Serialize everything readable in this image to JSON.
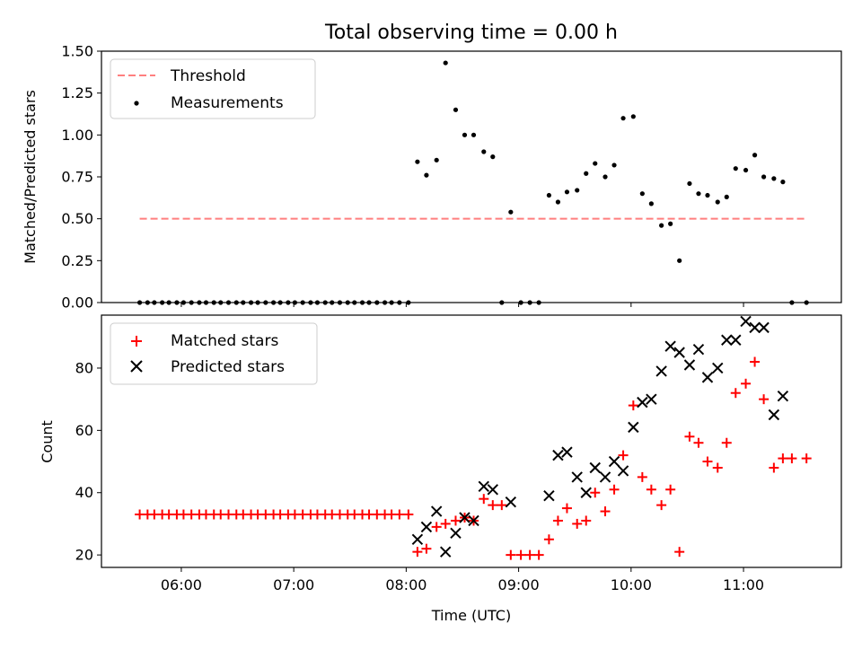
{
  "chart_data": [
    {
      "type": "scatter",
      "title": "Total observing time = 0.00 h",
      "ylabel": "Matched/Predicted stars",
      "xlabel": "",
      "xlim_hours": [
        5.29,
        11.87
      ],
      "ylim": [
        0,
        1.5
      ],
      "xticks": [
        {
          "h": 6,
          "label": "06:00"
        },
        {
          "h": 7,
          "label": "07:00"
        },
        {
          "h": 8,
          "label": "08:00"
        },
        {
          "h": 9,
          "label": "09:00"
        },
        {
          "h": 10,
          "label": "10:00"
        },
        {
          "h": 11,
          "label": "11:00"
        }
      ],
      "yticks": [
        0,
        0.25,
        0.5,
        0.75,
        1.0,
        1.25,
        1.5
      ],
      "ytick_labels": [
        "0.00",
        "0.25",
        "0.50",
        "0.75",
        "1.00",
        "1.25",
        "1.50"
      ],
      "legend_position": "top-left",
      "threshold": {
        "name": "Threshold",
        "value": 0.5,
        "x_start": 5.63,
        "x_end": 11.56,
        "color": "#ff7f7f"
      },
      "series": [
        {
          "name": "Measurements",
          "color": "#000000",
          "marker": "dot",
          "points": [
            [
              5.63,
              0
            ],
            [
              5.7,
              0
            ],
            [
              5.76,
              0
            ],
            [
              5.83,
              0
            ],
            [
              5.89,
              0
            ],
            [
              5.96,
              0
            ],
            [
              6.02,
              0
            ],
            [
              6.09,
              0
            ],
            [
              6.16,
              0
            ],
            [
              6.22,
              0
            ],
            [
              6.29,
              0
            ],
            [
              6.35,
              0
            ],
            [
              6.42,
              0
            ],
            [
              6.49,
              0
            ],
            [
              6.55,
              0
            ],
            [
              6.62,
              0
            ],
            [
              6.68,
              0
            ],
            [
              6.75,
              0
            ],
            [
              6.82,
              0
            ],
            [
              6.88,
              0
            ],
            [
              6.95,
              0
            ],
            [
              7.01,
              0
            ],
            [
              7.08,
              0
            ],
            [
              7.15,
              0
            ],
            [
              7.21,
              0
            ],
            [
              7.28,
              0
            ],
            [
              7.34,
              0
            ],
            [
              7.41,
              0
            ],
            [
              7.48,
              0
            ],
            [
              7.54,
              0
            ],
            [
              7.61,
              0
            ],
            [
              7.67,
              0
            ],
            [
              7.74,
              0
            ],
            [
              7.81,
              0
            ],
            [
              7.87,
              0
            ],
            [
              7.94,
              0
            ],
            [
              8.02,
              0
            ],
            [
              8.1,
              0.84
            ],
            [
              8.18,
              0.76
            ],
            [
              8.27,
              0.85
            ],
            [
              8.35,
              1.43
            ],
            [
              8.44,
              1.15
            ],
            [
              8.52,
              1.0
            ],
            [
              8.6,
              1.0
            ],
            [
              8.69,
              0.9
            ],
            [
              8.77,
              0.87
            ],
            [
              8.85,
              0
            ],
            [
              8.93,
              0.54
            ],
            [
              9.02,
              0
            ],
            [
              9.1,
              0
            ],
            [
              9.18,
              0
            ],
            [
              9.27,
              0.64
            ],
            [
              9.35,
              0.6
            ],
            [
              9.43,
              0.66
            ],
            [
              9.52,
              0.67
            ],
            [
              9.6,
              0.77
            ],
            [
              9.68,
              0.83
            ],
            [
              9.77,
              0.75
            ],
            [
              9.85,
              0.82
            ],
            [
              9.93,
              1.1
            ],
            [
              10.02,
              1.11
            ],
            [
              10.1,
              0.65
            ],
            [
              10.18,
              0.59
            ],
            [
              10.27,
              0.46
            ],
            [
              10.35,
              0.47
            ],
            [
              10.43,
              0.25
            ],
            [
              10.52,
              0.71
            ],
            [
              10.6,
              0.65
            ],
            [
              10.68,
              0.64
            ],
            [
              10.77,
              0.6
            ],
            [
              10.85,
              0.63
            ],
            [
              10.93,
              0.8
            ],
            [
              11.02,
              0.79
            ],
            [
              11.1,
              0.88
            ],
            [
              11.18,
              0.75
            ],
            [
              11.27,
              0.74
            ],
            [
              11.35,
              0.72
            ],
            [
              11.43,
              0
            ],
            [
              11.56,
              0
            ]
          ]
        }
      ]
    },
    {
      "type": "scatter",
      "title": "",
      "xlabel": "Time (UTC)",
      "ylabel": "Count",
      "xlim_hours": [
        5.29,
        11.87
      ],
      "ylim": [
        16,
        97
      ],
      "xticks": [
        {
          "h": 6,
          "label": "06:00"
        },
        {
          "h": 7,
          "label": "07:00"
        },
        {
          "h": 8,
          "label": "08:00"
        },
        {
          "h": 9,
          "label": "09:00"
        },
        {
          "h": 10,
          "label": "10:00"
        },
        {
          "h": 11,
          "label": "11:00"
        }
      ],
      "yticks": [
        20,
        40,
        60,
        80
      ],
      "ytick_labels": [
        "20",
        "40",
        "60",
        "80"
      ],
      "legend_position": "top-left",
      "series": [
        {
          "name": "Matched stars",
          "color": "#ff0000",
          "marker": "plus",
          "points": [
            [
              5.63,
              33
            ],
            [
              5.7,
              33
            ],
            [
              5.76,
              33
            ],
            [
              5.83,
              33
            ],
            [
              5.89,
              33
            ],
            [
              5.96,
              33
            ],
            [
              6.02,
              33
            ],
            [
              6.09,
              33
            ],
            [
              6.16,
              33
            ],
            [
              6.22,
              33
            ],
            [
              6.29,
              33
            ],
            [
              6.35,
              33
            ],
            [
              6.42,
              33
            ],
            [
              6.49,
              33
            ],
            [
              6.55,
              33
            ],
            [
              6.62,
              33
            ],
            [
              6.68,
              33
            ],
            [
              6.75,
              33
            ],
            [
              6.82,
              33
            ],
            [
              6.88,
              33
            ],
            [
              6.95,
              33
            ],
            [
              7.01,
              33
            ],
            [
              7.08,
              33
            ],
            [
              7.15,
              33
            ],
            [
              7.21,
              33
            ],
            [
              7.28,
              33
            ],
            [
              7.34,
              33
            ],
            [
              7.41,
              33
            ],
            [
              7.48,
              33
            ],
            [
              7.54,
              33
            ],
            [
              7.61,
              33
            ],
            [
              7.67,
              33
            ],
            [
              7.74,
              33
            ],
            [
              7.81,
              33
            ],
            [
              7.87,
              33
            ],
            [
              7.94,
              33
            ],
            [
              8.02,
              33
            ],
            [
              8.1,
              21
            ],
            [
              8.18,
              22
            ],
            [
              8.27,
              29
            ],
            [
              8.35,
              30
            ],
            [
              8.44,
              31
            ],
            [
              8.52,
              32
            ],
            [
              8.6,
              31
            ],
            [
              8.69,
              38
            ],
            [
              8.77,
              36
            ],
            [
              8.85,
              36
            ],
            [
              8.93,
              20
            ],
            [
              9.02,
              20
            ],
            [
              9.1,
              20
            ],
            [
              9.18,
              20
            ],
            [
              9.27,
              25
            ],
            [
              9.35,
              31
            ],
            [
              9.43,
              35
            ],
            [
              9.52,
              30
            ],
            [
              9.6,
              31
            ],
            [
              9.68,
              40
            ],
            [
              9.77,
              34
            ],
            [
              9.85,
              41
            ],
            [
              9.93,
              52
            ],
            [
              10.02,
              68
            ],
            [
              10.1,
              45
            ],
            [
              10.18,
              41
            ],
            [
              10.27,
              36
            ],
            [
              10.35,
              41
            ],
            [
              10.43,
              21
            ],
            [
              10.52,
              58
            ],
            [
              10.6,
              56
            ],
            [
              10.68,
              50
            ],
            [
              10.77,
              48
            ],
            [
              10.85,
              56
            ],
            [
              10.93,
              72
            ],
            [
              11.02,
              75
            ],
            [
              11.1,
              82
            ],
            [
              11.18,
              70
            ],
            [
              11.27,
              48
            ],
            [
              11.35,
              51
            ],
            [
              11.43,
              51
            ],
            [
              11.56,
              51
            ]
          ]
        },
        {
          "name": "Predicted stars",
          "color": "#000000",
          "marker": "cross",
          "points": [
            [
              8.1,
              25
            ],
            [
              8.18,
              29
            ],
            [
              8.27,
              34
            ],
            [
              8.35,
              21
            ],
            [
              8.44,
              27
            ],
            [
              8.52,
              32
            ],
            [
              8.6,
              31
            ],
            [
              8.69,
              42
            ],
            [
              8.77,
              41
            ],
            [
              8.93,
              37
            ],
            [
              9.27,
              39
            ],
            [
              9.35,
              52
            ],
            [
              9.43,
              53
            ],
            [
              9.52,
              45
            ],
            [
              9.6,
              40
            ],
            [
              9.68,
              48
            ],
            [
              9.77,
              45
            ],
            [
              9.85,
              50
            ],
            [
              9.93,
              47
            ],
            [
              10.02,
              61
            ],
            [
              10.1,
              69
            ],
            [
              10.18,
              70
            ],
            [
              10.27,
              79
            ],
            [
              10.35,
              87
            ],
            [
              10.43,
              85
            ],
            [
              10.52,
              81
            ],
            [
              10.6,
              86
            ],
            [
              10.68,
              77
            ],
            [
              10.77,
              80
            ],
            [
              10.85,
              89
            ],
            [
              10.93,
              89
            ],
            [
              11.02,
              95
            ],
            [
              11.1,
              93
            ],
            [
              11.18,
              93
            ],
            [
              11.27,
              65
            ],
            [
              11.35,
              71
            ]
          ]
        }
      ]
    }
  ]
}
